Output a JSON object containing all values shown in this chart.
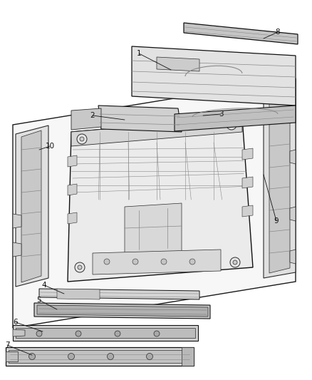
{
  "background_color": "#ffffff",
  "figsize": [
    4.38,
    5.33
  ],
  "dpi": 100,
  "image_data": "target_recreation"
}
